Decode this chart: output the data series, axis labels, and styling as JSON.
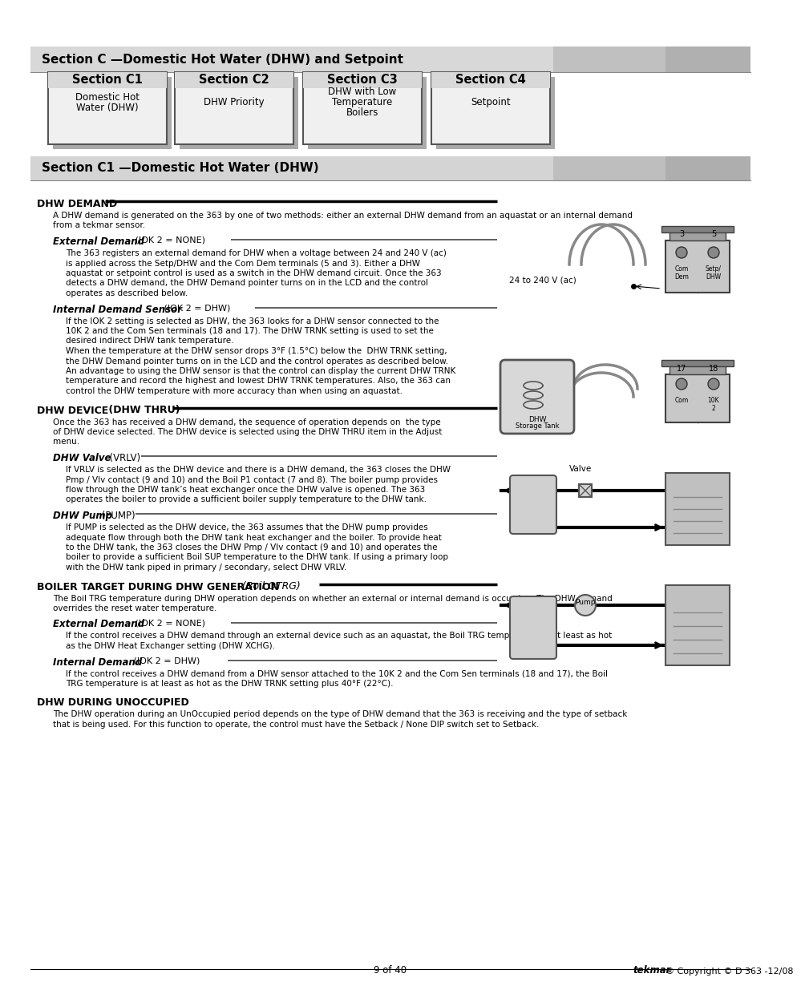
{
  "page_bg": "#ffffff",
  "top_header_text": "Section C —Domestic Hot Water (DHW) and Setpoint",
  "section_c1_header": "Section C1 —Domestic Hot Water (DHW)",
  "section_boxes": [
    {
      "title": "Section C1",
      "sub": "Domestic Hot\nWater (DHW)"
    },
    {
      "title": "Section C2",
      "sub": "DHW Priority"
    },
    {
      "title": "Section C3",
      "sub": "DHW with Low\nTemperature\nBoilers"
    },
    {
      "title": "Section C4",
      "sub": "Setpoint"
    }
  ],
  "footer_left": "9 of 40",
  "footer_right_italic": "tekmar",
  "footer_right_normal": "® Copyright © D 363 -12/08"
}
